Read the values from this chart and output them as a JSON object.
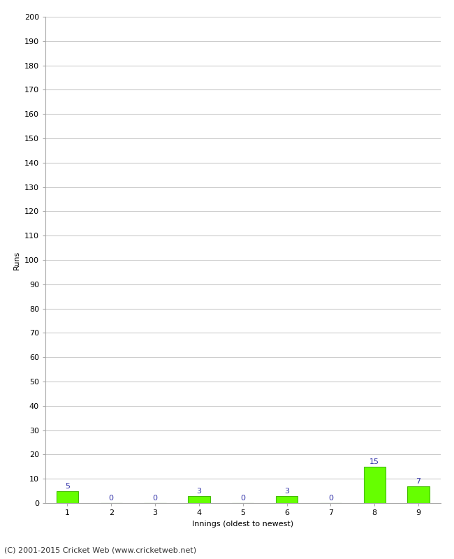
{
  "xlabel": "Innings (oldest to newest)",
  "ylabel": "Runs",
  "categories": [
    "1",
    "2",
    "3",
    "4",
    "5",
    "6",
    "7",
    "8",
    "9"
  ],
  "values": [
    5,
    0,
    0,
    3,
    0,
    3,
    0,
    15,
    7
  ],
  "bar_color": "#66ff00",
  "bar_edge_color": "#44bb00",
  "label_color": "#3333aa",
  "ylim": [
    0,
    200
  ],
  "yticks": [
    0,
    10,
    20,
    30,
    40,
    50,
    60,
    70,
    80,
    90,
    100,
    110,
    120,
    130,
    140,
    150,
    160,
    170,
    180,
    190,
    200
  ],
  "footer": "(C) 2001-2015 Cricket Web (www.cricketweb.net)",
  "background_color": "#ffffff",
  "grid_color": "#cccccc",
  "label_fontsize": 8,
  "tick_fontsize": 8,
  "footer_fontsize": 8,
  "bar_label_fontsize": 8
}
